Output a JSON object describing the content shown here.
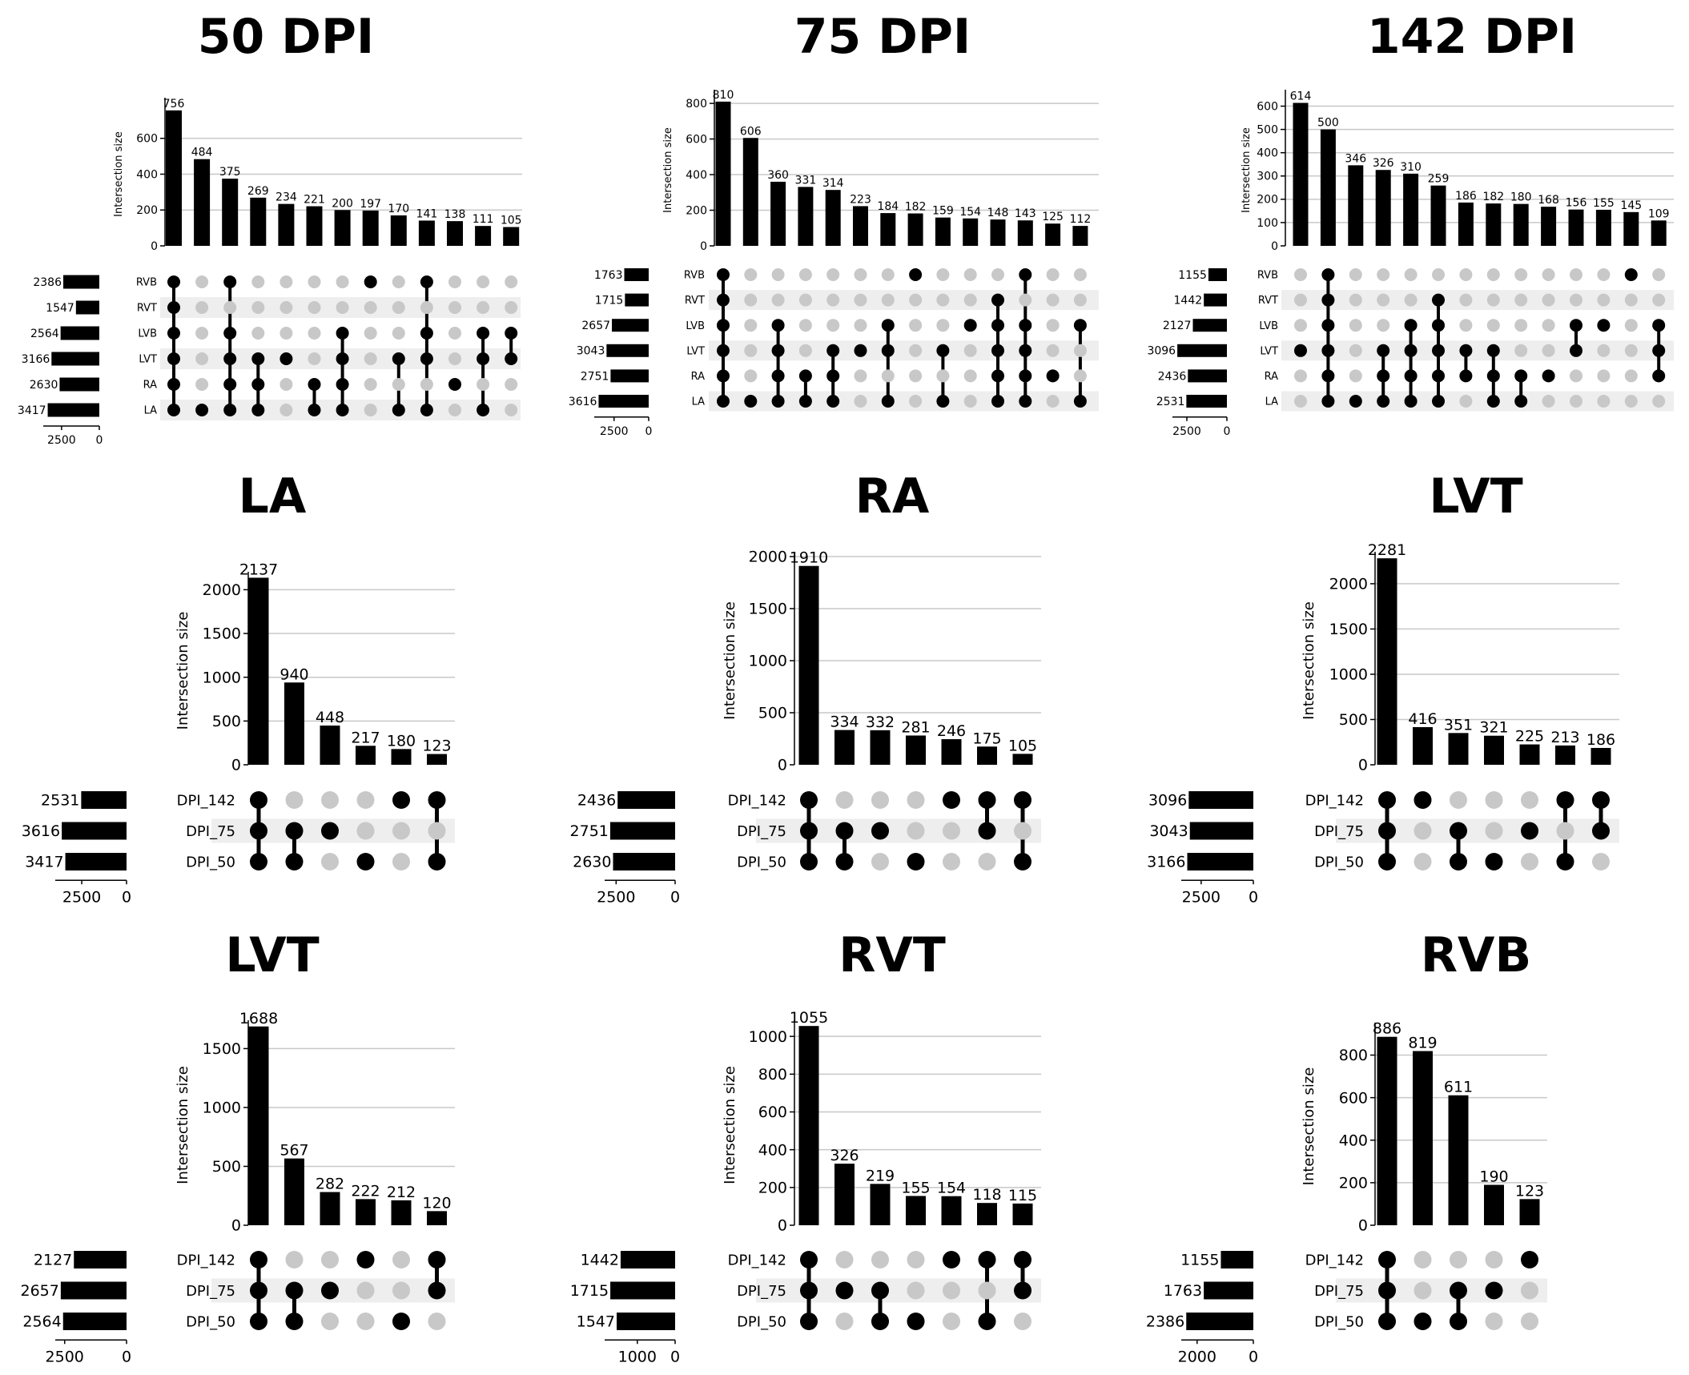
{
  "chart_data": [
    {
      "type": "upset",
      "title": "50 DPI",
      "ylabel": "Intersection size",
      "ylim": [
        0,
        800
      ],
      "yticks": [
        0,
        200,
        400,
        600
      ],
      "sets": [
        "RVB",
        "RVT",
        "LVB",
        "LVT",
        "RA",
        "LA"
      ],
      "set_sizes": [
        2386,
        1547,
        2564,
        3166,
        2630,
        3417
      ],
      "set_xlim": [
        0,
        3500
      ],
      "set_ticks": [
        2500,
        0
      ],
      "bars": [
        {
          "value": 756,
          "members": [
            "RVB",
            "RVT",
            "LVB",
            "LVT",
            "RA",
            "LA"
          ]
        },
        {
          "value": 484,
          "members": [
            "LA"
          ]
        },
        {
          "value": 375,
          "members": [
            "RVB",
            "LVB",
            "LVT",
            "RA",
            "LA"
          ]
        },
        {
          "value": 269,
          "members": [
            "LVT",
            "RA",
            "LA"
          ]
        },
        {
          "value": 234,
          "members": [
            "LVT"
          ]
        },
        {
          "value": 221,
          "members": [
            "RA",
            "LA"
          ]
        },
        {
          "value": 200,
          "members": [
            "LVB",
            "LVT",
            "RA",
            "LA"
          ]
        },
        {
          "value": 197,
          "members": [
            "RVB"
          ]
        },
        {
          "value": 170,
          "members": [
            "LVT",
            "LA"
          ]
        },
        {
          "value": 141,
          "members": [
            "RVB",
            "LVB",
            "LVT",
            "LA"
          ]
        },
        {
          "value": 138,
          "members": [
            "RA"
          ]
        },
        {
          "value": 111,
          "members": [
            "LVB",
            "LVT",
            "LA"
          ]
        },
        {
          "value": 105,
          "members": [
            "LVB",
            "LVT"
          ]
        }
      ]
    },
    {
      "type": "upset",
      "title": "75 DPI",
      "ylabel": "Intersection size",
      "ylim": [
        0,
        850
      ],
      "yticks": [
        0,
        200,
        400,
        600,
        800
      ],
      "sets": [
        "RVB",
        "RVT",
        "LVB",
        "LVT",
        "RA",
        "LA"
      ],
      "set_sizes": [
        1763,
        1715,
        2657,
        3043,
        2751,
        3616
      ],
      "set_xlim": [
        0,
        3700
      ],
      "set_ticks": [
        2500,
        0
      ],
      "bars": [
        {
          "value": 810,
          "members": [
            "RVB",
            "RVT",
            "LVB",
            "LVT",
            "RA",
            "LA"
          ]
        },
        {
          "value": 606,
          "members": [
            "LA"
          ]
        },
        {
          "value": 360,
          "members": [
            "LVB",
            "LVT",
            "RA",
            "LA"
          ]
        },
        {
          "value": 331,
          "members": [
            "RA",
            "LA"
          ]
        },
        {
          "value": 314,
          "members": [
            "LVT",
            "RA",
            "LA"
          ]
        },
        {
          "value": 223,
          "members": [
            "LVT"
          ]
        },
        {
          "value": 184,
          "members": [
            "LVB",
            "LVT",
            "LA"
          ]
        },
        {
          "value": 182,
          "members": [
            "RVB"
          ]
        },
        {
          "value": 159,
          "members": [
            "LVT",
            "LA"
          ]
        },
        {
          "value": 154,
          "members": [
            "LVB"
          ]
        },
        {
          "value": 148,
          "members": [
            "RVT",
            "LVB",
            "LVT",
            "RA",
            "LA"
          ]
        },
        {
          "value": 143,
          "members": [
            "RVB",
            "LVB",
            "LVT",
            "RA",
            "LA"
          ]
        },
        {
          "value": 125,
          "members": [
            "RA"
          ]
        },
        {
          "value": 112,
          "members": [
            "LVB",
            "LA"
          ]
        }
      ]
    },
    {
      "type": "upset",
      "title": "142 DPI",
      "ylabel": "Intersection size",
      "ylim": [
        0,
        650
      ],
      "yticks": [
        0,
        100,
        200,
        300,
        400,
        500,
        600
      ],
      "sets": [
        "RVB",
        "RVT",
        "LVB",
        "LVT",
        "RA",
        "LA"
      ],
      "set_sizes": [
        1155,
        1442,
        2127,
        3096,
        2436,
        2531
      ],
      "set_xlim": [
        0,
        3200
      ],
      "set_ticks": [
        2500,
        0
      ],
      "bars": [
        {
          "value": 614,
          "members": [
            "LVT"
          ]
        },
        {
          "value": 500,
          "members": [
            "RVB",
            "RVT",
            "LVB",
            "LVT",
            "RA",
            "LA"
          ]
        },
        {
          "value": 346,
          "members": [
            "LA"
          ]
        },
        {
          "value": 326,
          "members": [
            "LVT",
            "RA",
            "LA"
          ]
        },
        {
          "value": 310,
          "members": [
            "LVB",
            "LVT",
            "RA",
            "LA"
          ]
        },
        {
          "value": 259,
          "members": [
            "RVT",
            "LVB",
            "LVT",
            "RA",
            "LA"
          ]
        },
        {
          "value": 186,
          "members": [
            "LVT",
            "RA"
          ]
        },
        {
          "value": 182,
          "members": [
            "LVT",
            "RA",
            "LA"
          ]
        },
        {
          "value": 180,
          "members": [
            "RA",
            "LA"
          ]
        },
        {
          "value": 168,
          "members": [
            "RA"
          ]
        },
        {
          "value": 156,
          "members": [
            "LVB",
            "LVT"
          ]
        },
        {
          "value": 155,
          "members": [
            "LVB"
          ]
        },
        {
          "value": 145,
          "members": [
            "RVB"
          ]
        },
        {
          "value": 109,
          "members": [
            "LVB",
            "LVT",
            "RA"
          ]
        }
      ]
    },
    {
      "type": "upset",
      "title": "LA",
      "ylabel": "Intersection size",
      "ylim": [
        0,
        2150
      ],
      "yticks": [
        0,
        500,
        1000,
        1500,
        2000
      ],
      "sets": [
        "DPI_142",
        "DPI_75",
        "DPI_50"
      ],
      "set_sizes": [
        2531,
        3616,
        3417
      ],
      "set_xlim": [
        0,
        3800
      ],
      "set_ticks": [
        2500,
        0
      ],
      "bars": [
        {
          "value": 2137,
          "members": [
            "DPI_142",
            "DPI_75",
            "DPI_50"
          ]
        },
        {
          "value": 940,
          "members": [
            "DPI_75",
            "DPI_50"
          ]
        },
        {
          "value": 448,
          "members": [
            "DPI_75"
          ]
        },
        {
          "value": 217,
          "members": [
            "DPI_50"
          ]
        },
        {
          "value": 180,
          "members": [
            "DPI_142"
          ]
        },
        {
          "value": 123,
          "members": [
            "DPI_142",
            "DPI_50"
          ]
        }
      ]
    },
    {
      "type": "upset",
      "title": "RA",
      "ylabel": "Intersection size",
      "ylim": [
        0,
        2000
      ],
      "yticks": [
        0,
        500,
        1000,
        1500,
        2000
      ],
      "sets": [
        "DPI_142",
        "DPI_75",
        "DPI_50"
      ],
      "set_sizes": [
        2436,
        2751,
        2630
      ],
      "set_xlim": [
        0,
        2850
      ],
      "set_ticks": [
        2500,
        0
      ],
      "bars": [
        {
          "value": 1910,
          "members": [
            "DPI_142",
            "DPI_75",
            "DPI_50"
          ]
        },
        {
          "value": 334,
          "members": [
            "DPI_75",
            "DPI_50"
          ]
        },
        {
          "value": 332,
          "members": [
            "DPI_75"
          ]
        },
        {
          "value": 281,
          "members": [
            "DPI_50"
          ]
        },
        {
          "value": 246,
          "members": [
            "DPI_142"
          ]
        },
        {
          "value": 175,
          "members": [
            "DPI_142",
            "DPI_75"
          ]
        },
        {
          "value": 105,
          "members": [
            "DPI_142",
            "DPI_50"
          ]
        }
      ]
    },
    {
      "type": "upset",
      "title": "LVT",
      "ylabel": "Intersection size",
      "ylim": [
        0,
        2300
      ],
      "yticks": [
        0,
        500,
        1000,
        1500,
        2000
      ],
      "sets": [
        "DPI_142",
        "DPI_75",
        "DPI_50"
      ],
      "set_sizes": [
        3096,
        3043,
        3166
      ],
      "set_xlim": [
        0,
        3300
      ],
      "set_ticks": [
        2500,
        0
      ],
      "bars": [
        {
          "value": 2281,
          "members": [
            "DPI_142",
            "DPI_75",
            "DPI_50"
          ]
        },
        {
          "value": 416,
          "members": [
            "DPI_142"
          ]
        },
        {
          "value": 351,
          "members": [
            "DPI_75",
            "DPI_50"
          ]
        },
        {
          "value": 321,
          "members": [
            "DPI_50"
          ]
        },
        {
          "value": 225,
          "members": [
            "DPI_75"
          ]
        },
        {
          "value": 213,
          "members": [
            "DPI_142",
            "DPI_50"
          ]
        },
        {
          "value": 186,
          "members": [
            "DPI_142",
            "DPI_75"
          ]
        }
      ]
    },
    {
      "type": "upset",
      "title": "LVT",
      "ylabel": "Intersection size",
      "ylim": [
        0,
        1700
      ],
      "yticks": [
        0,
        500,
        1000,
        1500
      ],
      "sets": [
        "DPI_142",
        "DPI_75",
        "DPI_50"
      ],
      "set_sizes": [
        2127,
        2657,
        2564
      ],
      "set_xlim": [
        0,
        2750
      ],
      "set_ticks": [
        2500,
        0
      ],
      "bars": [
        {
          "value": 1688,
          "members": [
            "DPI_142",
            "DPI_75",
            "DPI_50"
          ]
        },
        {
          "value": 567,
          "members": [
            "DPI_75",
            "DPI_50"
          ]
        },
        {
          "value": 282,
          "members": [
            "DPI_75"
          ]
        },
        {
          "value": 222,
          "members": [
            "DPI_142"
          ]
        },
        {
          "value": 212,
          "members": [
            "DPI_50"
          ]
        },
        {
          "value": 120,
          "members": [
            "DPI_142",
            "DPI_75"
          ]
        }
      ]
    },
    {
      "type": "upset",
      "title": "RVT",
      "ylabel": "Intersection size",
      "ylim": [
        0,
        1060
      ],
      "yticks": [
        0,
        200,
        400,
        600,
        800,
        1000
      ],
      "sets": [
        "DPI_142",
        "DPI_75",
        "DPI_50"
      ],
      "set_sizes": [
        1442,
        1715,
        1547
      ],
      "set_xlim": [
        0,
        1780
      ],
      "set_ticks": [
        1000,
        0
      ],
      "bars": [
        {
          "value": 1055,
          "members": [
            "DPI_142",
            "DPI_75",
            "DPI_50"
          ]
        },
        {
          "value": 326,
          "members": [
            "DPI_75"
          ]
        },
        {
          "value": 219,
          "members": [
            "DPI_75",
            "DPI_50"
          ]
        },
        {
          "value": 155,
          "members": [
            "DPI_50"
          ]
        },
        {
          "value": 154,
          "members": [
            "DPI_142"
          ]
        },
        {
          "value": 118,
          "members": [
            "DPI_142",
            "DPI_50"
          ]
        },
        {
          "value": 115,
          "members": [
            "DPI_142",
            "DPI_75"
          ]
        }
      ]
    },
    {
      "type": "upset",
      "title": "RVB",
      "ylabel": "Intersection size",
      "ylim": [
        0,
        930
      ],
      "yticks": [
        0,
        200,
        400,
        600,
        800
      ],
      "sets": [
        "DPI_142",
        "DPI_75",
        "DPI_50"
      ],
      "set_sizes": [
        1155,
        1763,
        2386
      ],
      "set_xlim": [
        0,
        2450
      ],
      "set_ticks": [
        2000,
        0
      ],
      "bars": [
        {
          "value": 886,
          "members": [
            "DPI_142",
            "DPI_75",
            "DPI_50"
          ]
        },
        {
          "value": 819,
          "members": [
            "DPI_50"
          ]
        },
        {
          "value": 611,
          "members": [
            "DPI_75",
            "DPI_50"
          ]
        },
        {
          "value": 190,
          "members": [
            "DPI_75"
          ]
        },
        {
          "value": 123,
          "members": [
            "DPI_142"
          ]
        }
      ]
    }
  ]
}
